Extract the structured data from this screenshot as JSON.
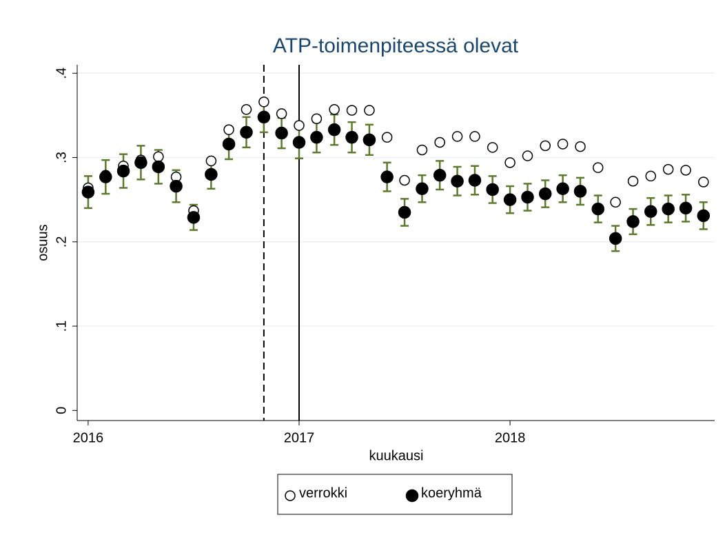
{
  "chart_data": {
    "type": "scatter",
    "title": "ATP-toimenpiteessä olevat",
    "x_label": "kuukausi",
    "y_label": "osuus",
    "x": [
      2016,
      2016.083,
      2016.167,
      2016.25,
      2016.333,
      2016.417,
      2016.5,
      2016.583,
      2016.667,
      2016.75,
      2016.833,
      2016.917,
      2017,
      2017.083,
      2017.167,
      2017.25,
      2017.333,
      2017.417,
      2017.5,
      2017.583,
      2017.667,
      2017.75,
      2017.833,
      2017.917,
      2018,
      2018.083,
      2018.167,
      2018.25,
      2018.333,
      2018.417,
      2018.5,
      2018.583,
      2018.667,
      2018.75,
      2018.833,
      2018.917
    ],
    "series": [
      {
        "name": "verrokki",
        "color": "#000000",
        "marker": "hollow",
        "values": [
          0.264,
          0.279,
          0.29,
          0.297,
          0.301,
          0.277,
          0.237,
          0.296,
          0.333,
          0.357,
          0.366,
          0.352,
          0.338,
          0.346,
          0.357,
          0.356,
          0.356,
          0.324,
          0.273,
          0.309,
          0.318,
          0.325,
          0.325,
          0.312,
          0.294,
          0.302,
          0.314,
          0.316,
          0.313,
          0.288,
          0.247,
          0.272,
          0.278,
          0.286,
          0.285,
          0.271
        ]
      },
      {
        "name": "koeryhmä",
        "color": "#000000",
        "marker": "filled",
        "error_color": "#5b7a2b",
        "values": [
          0.259,
          0.277,
          0.284,
          0.294,
          0.289,
          0.266,
          0.229,
          0.28,
          0.316,
          0.33,
          0.348,
          0.329,
          0.318,
          0.324,
          0.333,
          0.324,
          0.321,
          0.277,
          0.235,
          0.263,
          0.279,
          0.272,
          0.273,
          0.262,
          0.25,
          0.253,
          0.257,
          0.263,
          0.26,
          0.239,
          0.204,
          0.224,
          0.236,
          0.239,
          0.24,
          0.231
        ],
        "errors": [
          0.019,
          0.02,
          0.02,
          0.02,
          0.02,
          0.019,
          0.015,
          0.017,
          0.018,
          0.018,
          0.018,
          0.018,
          0.019,
          0.018,
          0.018,
          0.018,
          0.018,
          0.017,
          0.016,
          0.016,
          0.017,
          0.017,
          0.017,
          0.016,
          0.016,
          0.016,
          0.016,
          0.016,
          0.016,
          0.016,
          0.015,
          0.015,
          0.016,
          0.016,
          0.016,
          0.016
        ]
      }
    ],
    "xlim": [
      2015.948,
      2018.97
    ],
    "xticks": [
      2016,
      2017,
      2018
    ],
    "ylim": [
      -0.012,
      0.41
    ],
    "yticks": [
      0,
      {
        "value": 0.1,
        "label": ".1"
      },
      {
        "value": 0.2,
        "label": ".2"
      },
      {
        "value": 0.3,
        "label": ".3"
      },
      {
        "value": 0.4,
        "label": ".4"
      }
    ],
    "vlines": [
      {
        "x": 2016.833,
        "style": "dashed"
      },
      {
        "x": 2017,
        "style": "solid"
      }
    ],
    "grid": true,
    "title_color": "#1a476f",
    "legend": "bottom"
  }
}
